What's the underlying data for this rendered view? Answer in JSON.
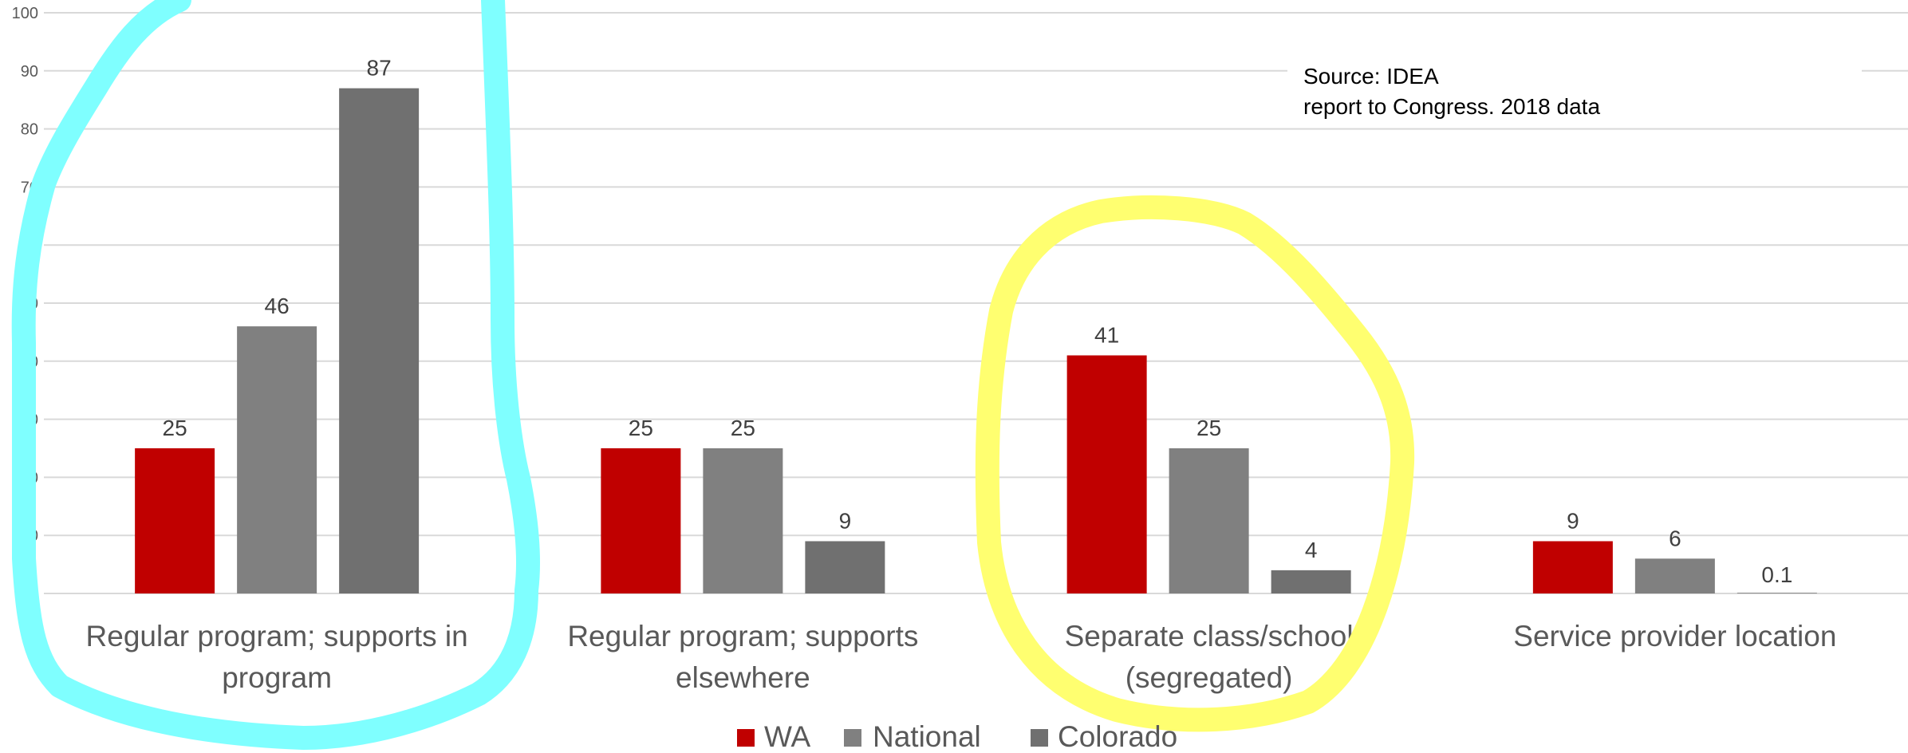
{
  "chart_data": {
    "type": "bar",
    "categories": [
      [
        "Regular program; supports in",
        "program"
      ],
      [
        "Regular program; supports",
        "elsewhere"
      ],
      [
        "Separate class/school",
        "(segregated)"
      ],
      [
        "Service provider location"
      ]
    ],
    "series": [
      {
        "name": "WA",
        "color": "#C00000",
        "values": [
          25,
          25,
          41,
          9
        ]
      },
      {
        "name": "National",
        "color": "#808080",
        "values": [
          46,
          25,
          25,
          6
        ]
      },
      {
        "name": "Colorado",
        "color": "#707070",
        "values": [
          87,
          9,
          4,
          0.1
        ]
      }
    ],
    "data_labels": [
      [
        "25",
        "25",
        "41",
        "9"
      ],
      [
        "46",
        "25",
        "25",
        "6"
      ],
      [
        "87",
        "9",
        "4",
        "0.1"
      ]
    ],
    "ylim": [
      0,
      100
    ],
    "yticks": [
      "0",
      "10",
      "20",
      "30",
      "40",
      "50",
      "60",
      "70",
      "80",
      "90",
      "100"
    ],
    "grid": true,
    "legend_position": "bottom",
    "annotation": {
      "line1": "Source: IDEA",
      "line2": "report to Congress. 2018 data"
    },
    "highlights": [
      {
        "target": "Regular program; supports in program",
        "color": "#7FFFFF"
      },
      {
        "target": "Separate class/school (segregated)",
        "color": "#FFFF70"
      }
    ]
  }
}
